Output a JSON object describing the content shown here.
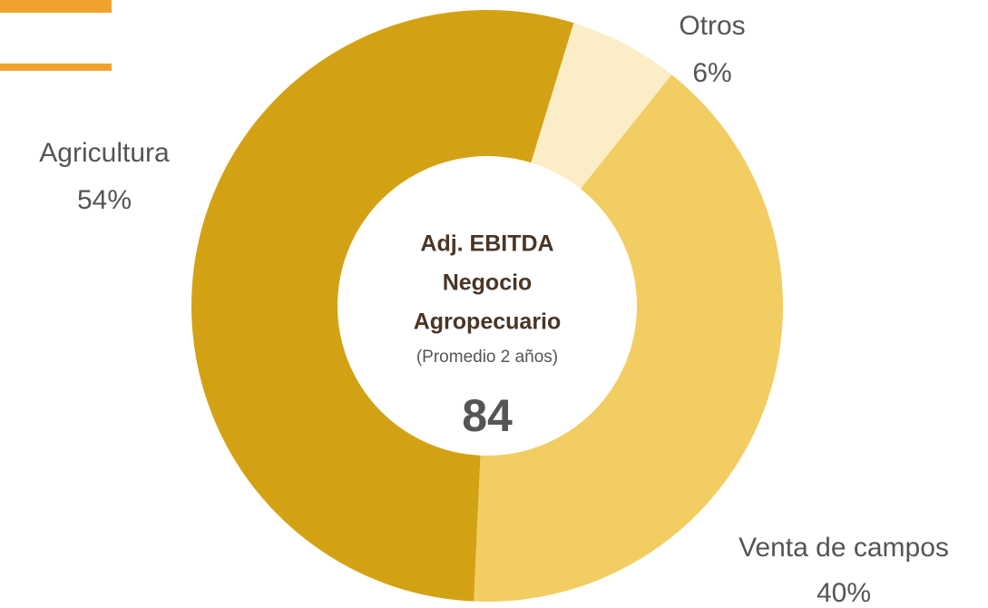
{
  "chart_data": {
    "type": "donut",
    "categories": [
      "Otros",
      "Venta de campos",
      "Agricultura"
    ],
    "values": [
      6,
      40,
      54
    ],
    "value_labels": [
      "6%",
      "40%",
      "54%"
    ],
    "colors": [
      "#fbedc6",
      "#f2cd62",
      "#d3a214"
    ],
    "center_title": [
      "Adj. EBITDA",
      "Negocio",
      "Agropecuario"
    ],
    "center_subtitle": "(Promedio 2 años)",
    "total": 84
  }
}
